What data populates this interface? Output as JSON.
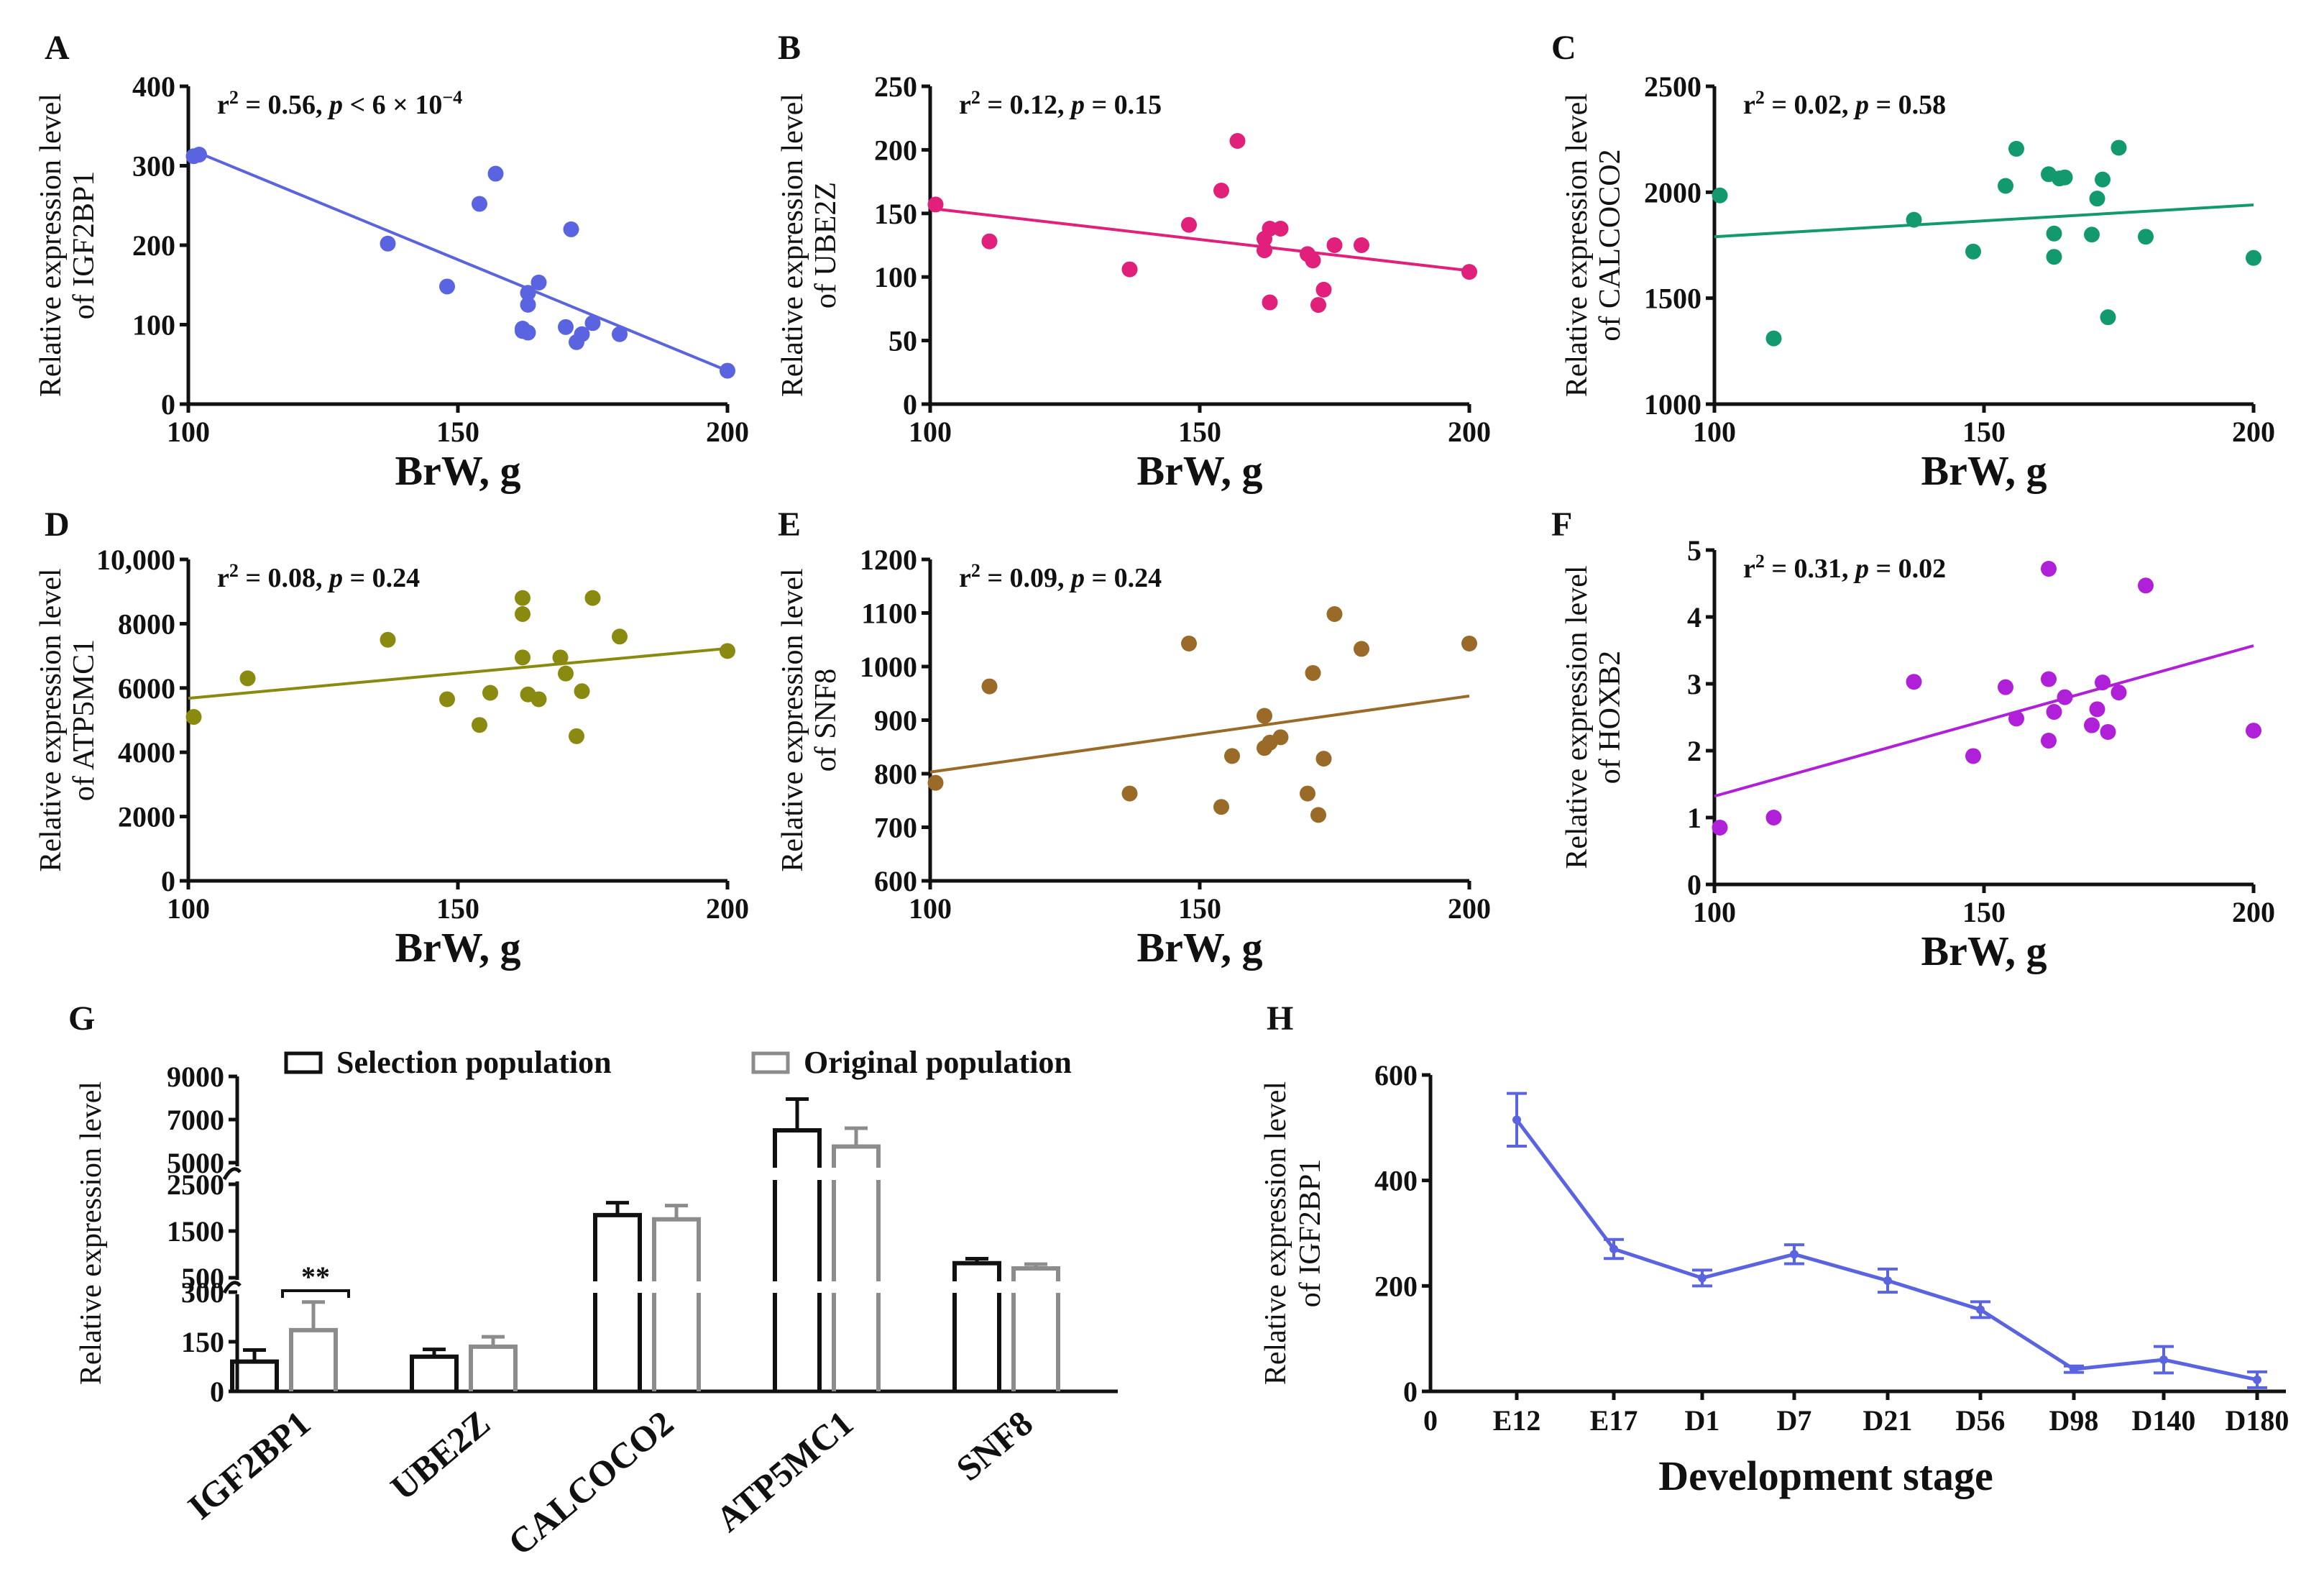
{
  "chart_data": [
    {
      "panel": "A",
      "type": "scatter",
      "color": "#5a64e0",
      "ylabel_lines": [
        "Relative expression level",
        "of IGF2BP1"
      ],
      "xlabel": "BrW, g",
      "stat": {
        "r": "r",
        "sup": "2",
        "mid": " = 0.56, ",
        "p": "p",
        "rest": " < 6 × 10",
        "rest_sup": "−4"
      },
      "xlim": [
        100,
        200
      ],
      "ylim": [
        0,
        400
      ],
      "xticks": [
        100,
        150,
        200
      ],
      "yticks": [
        0,
        100,
        200,
        300,
        400
      ],
      "yticklabels": [
        "0",
        "100",
        "200",
        "300",
        "400"
      ],
      "points": [
        [
          101,
          312
        ],
        [
          102,
          314
        ],
        [
          137,
          202
        ],
        [
          148,
          148
        ],
        [
          154,
          252
        ],
        [
          157,
          290
        ],
        [
          162,
          95
        ],
        [
          162,
          92
        ],
        [
          163,
          90
        ],
        [
          163,
          125
        ],
        [
          163,
          140
        ],
        [
          165,
          153
        ],
        [
          170,
          97
        ],
        [
          171,
          220
        ],
        [
          172,
          78
        ],
        [
          173,
          88
        ],
        [
          175,
          102
        ],
        [
          180,
          88
        ],
        [
          200,
          42
        ]
      ],
      "fit": [
        [
          102,
          316
        ],
        [
          200,
          42
        ]
      ]
    },
    {
      "panel": "B",
      "type": "scatter",
      "color": "#e0207a",
      "ylabel_lines": [
        "Relative expression level",
        "of UBE2Z"
      ],
      "xlabel": "BrW, g",
      "stat": {
        "r": "r",
        "sup": "2",
        "mid": " = 0.12, ",
        "p": "p",
        "rest": " = 0.15",
        "rest_sup": ""
      },
      "xlim": [
        100,
        200
      ],
      "ylim": [
        0,
        250
      ],
      "xticks": [
        100,
        150,
        200
      ],
      "yticks": [
        0,
        50,
        100,
        150,
        200,
        250
      ],
      "yticklabels": [
        "0",
        "50",
        "100",
        "150",
        "200",
        "250"
      ],
      "points": [
        [
          101,
          157
        ],
        [
          111,
          128
        ],
        [
          137,
          106
        ],
        [
          148,
          141
        ],
        [
          154,
          168
        ],
        [
          157,
          207
        ],
        [
          162,
          121
        ],
        [
          162,
          130
        ],
        [
          163,
          80
        ],
        [
          163,
          138
        ],
        [
          165,
          138
        ],
        [
          170,
          118
        ],
        [
          171,
          113
        ],
        [
          172,
          78
        ],
        [
          173,
          90
        ],
        [
          175,
          125
        ],
        [
          180,
          125
        ],
        [
          200,
          104
        ]
      ],
      "fit": [
        [
          100,
          154
        ],
        [
          200,
          105
        ]
      ]
    },
    {
      "panel": "C",
      "type": "scatter",
      "color": "#129a6e",
      "ylabel_lines": [
        "Relative expression level",
        "of CALCOCO2"
      ],
      "xlabel": "BrW, g",
      "stat": {
        "r": "r",
        "sup": "2",
        "mid": " = 0.02, ",
        "p": "p",
        "rest": " = 0.58",
        "rest_sup": ""
      },
      "xlim": [
        100,
        200
      ],
      "ylim": [
        1000,
        2500
      ],
      "xticks": [
        100,
        150,
        200
      ],
      "yticks": [
        1000,
        1500,
        2000,
        2500
      ],
      "yticklabels": [
        "1000",
        "1500",
        "2000",
        "2500"
      ],
      "points": [
        [
          101,
          1985
        ],
        [
          111,
          1310
        ],
        [
          137,
          1870
        ],
        [
          148,
          1720
        ],
        [
          154,
          2030
        ],
        [
          156,
          2205
        ],
        [
          162,
          2085
        ],
        [
          163,
          1805
        ],
        [
          163,
          1695
        ],
        [
          164,
          2065
        ],
        [
          165,
          2070
        ],
        [
          170,
          1800
        ],
        [
          171,
          1970
        ],
        [
          172,
          2060
        ],
        [
          173,
          1410
        ],
        [
          175,
          2210
        ],
        [
          180,
          1790
        ],
        [
          200,
          1690
        ]
      ],
      "fit": [
        [
          100,
          1790
        ],
        [
          200,
          1940
        ]
      ]
    },
    {
      "panel": "D",
      "type": "scatter",
      "color": "#8a8a10",
      "ylabel_lines": [
        "Relative expression level",
        "of ATP5MC1"
      ],
      "xlabel": "BrW, g",
      "stat": {
        "r": "r",
        "sup": "2",
        "mid": " = 0.08, ",
        "p": "p",
        "rest": " = 0.24",
        "rest_sup": ""
      },
      "xlim": [
        100,
        200
      ],
      "ylim": [
        0,
        10000
      ],
      "xticks": [
        100,
        150,
        200
      ],
      "yticks": [
        0,
        2000,
        4000,
        6000,
        8000,
        10000
      ],
      "yticklabels": [
        "0",
        "2000",
        "4000",
        "6000",
        "8000",
        "10,000"
      ],
      "points": [
        [
          101,
          5100
        ],
        [
          111,
          6300
        ],
        [
          137,
          7500
        ],
        [
          148,
          5650
        ],
        [
          154,
          4850
        ],
        [
          156,
          5850
        ],
        [
          162,
          8300
        ],
        [
          162,
          8800
        ],
        [
          162,
          6950
        ],
        [
          163,
          5800
        ],
        [
          165,
          5650
        ],
        [
          169,
          6950
        ],
        [
          170,
          6450
        ],
        [
          172,
          4500
        ],
        [
          173,
          5900
        ],
        [
          175,
          8800
        ],
        [
          180,
          7600
        ],
        [
          200,
          7150
        ]
      ],
      "fit": [
        [
          100,
          5680
        ],
        [
          200,
          7230
        ]
      ]
    },
    {
      "panel": "E",
      "type": "scatter",
      "color": "#9a6a28",
      "ylabel_lines": [
        "Relative expression level",
        "of SNF8"
      ],
      "xlabel": "BrW, g",
      "stat": {
        "r": "r",
        "sup": "2",
        "mid": " = 0.09, ",
        "p": "p",
        "rest": " = 0.24",
        "rest_sup": ""
      },
      "xlim": [
        100,
        200
      ],
      "ylim": [
        600,
        1200
      ],
      "xticks": [
        100,
        150,
        200
      ],
      "yticks": [
        600,
        700,
        800,
        900,
        1000,
        1100,
        1200
      ],
      "yticklabels": [
        "600",
        "700",
        "800",
        "900",
        "1000",
        "1100",
        "1200"
      ],
      "points": [
        [
          101,
          783
        ],
        [
          111,
          963
        ],
        [
          137,
          763
        ],
        [
          148,
          1043
        ],
        [
          154,
          738
        ],
        [
          156,
          833
        ],
        [
          162,
          908
        ],
        [
          162,
          848
        ],
        [
          163,
          858
        ],
        [
          165,
          868
        ],
        [
          170,
          763
        ],
        [
          171,
          988
        ],
        [
          172,
          723
        ],
        [
          173,
          828
        ],
        [
          175,
          1098
        ],
        [
          180,
          1033
        ],
        [
          200,
          1043
        ]
      ],
      "fit": [
        [
          100,
          803
        ],
        [
          200,
          945
        ]
      ]
    },
    {
      "panel": "F",
      "type": "scatter",
      "color": "#b020d8",
      "ylabel_lines": [
        "Relative expression level",
        "of HOXB2"
      ],
      "xlabel": "BrW, g",
      "stat": {
        "r": "r",
        "sup": "2",
        "mid": " = 0.31, ",
        "p": "p",
        "rest": " = 0.02",
        "rest_sup": ""
      },
      "xlim": [
        100,
        200
      ],
      "ylim": [
        0,
        5
      ],
      "xticks": [
        100,
        150,
        200
      ],
      "yticks": [
        0,
        1,
        2,
        3,
        4,
        5
      ],
      "yticklabels": [
        "0",
        "1",
        "2",
        "3",
        "4",
        "5"
      ],
      "points": [
        [
          101,
          0.85
        ],
        [
          111,
          1.0
        ],
        [
          137,
          3.03
        ],
        [
          148,
          1.92
        ],
        [
          154,
          2.95
        ],
        [
          156,
          2.48
        ],
        [
          162,
          2.15
        ],
        [
          162,
          4.72
        ],
        [
          162,
          3.07
        ],
        [
          163,
          2.58
        ],
        [
          165,
          2.8
        ],
        [
          170,
          2.38
        ],
        [
          171,
          2.62
        ],
        [
          172,
          3.02
        ],
        [
          173,
          2.28
        ],
        [
          175,
          2.87
        ],
        [
          180,
          4.47
        ],
        [
          200,
          2.3
        ]
      ],
      "fit": [
        [
          100,
          1.32
        ],
        [
          200,
          3.57
        ]
      ]
    },
    {
      "panel": "G",
      "type": "bar",
      "ylabel": "Relative expression level",
      "categories": [
        "IGF2BP1",
        "UBE2Z",
        "CALCOCO2",
        "ATP5MC1",
        "SNF8"
      ],
      "series": [
        {
          "name": "Selection population",
          "color": "#111111",
          "values": [
            90,
            105,
            1840,
            6500,
            812
          ],
          "errors": [
            35,
            22,
            265,
            1450,
            95
          ]
        },
        {
          "name": "Original population",
          "color": "#8c8c8c",
          "values": [
            185,
            135,
            1750,
            5750,
            700
          ],
          "errors": [
            85,
            30,
            295,
            850,
            90
          ]
        }
      ],
      "yticklabels": [
        "0",
        "150",
        "300",
        "500",
        "1500",
        "2500",
        "5000",
        "7000",
        "9000"
      ],
      "significance": "**"
    },
    {
      "panel": "H",
      "type": "line",
      "color": "#5a64e0",
      "ylabel_lines": [
        "Relative expression level",
        "of IGF2BP1"
      ],
      "xlabel": "Development stage",
      "origin_label": "0",
      "categories": [
        "E12",
        "E17",
        "D1",
        "D7",
        "D21",
        "D56",
        "D98",
        "D140",
        "D180"
      ],
      "values": [
        515,
        270,
        215,
        260,
        210,
        155,
        42,
        60,
        22
      ],
      "errors": [
        50,
        18,
        15,
        18,
        22,
        15,
        6,
        25,
        15
      ],
      "ylim": [
        0,
        600
      ],
      "yticks": [
        0,
        200,
        400,
        600
      ],
      "yticklabels": [
        "0",
        "200",
        "400",
        "600"
      ]
    }
  ]
}
